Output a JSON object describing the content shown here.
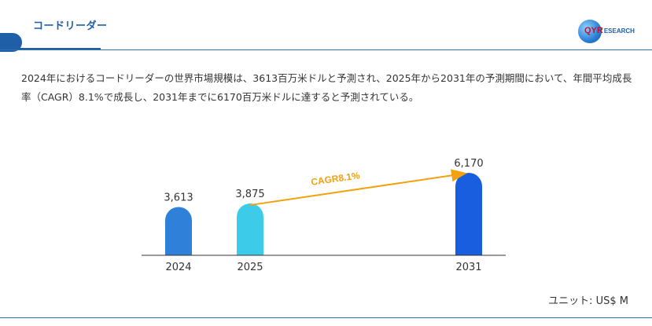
{
  "header": {
    "title": "コードリーダー",
    "logo_text": "QYR",
    "logo_sub": "ESEARCH"
  },
  "summary_text": "2024年におけるコードリーダーの世界市場規模は、3613百万米ドルと予測され、2025年から2031年の予測期間において、年間平均成長率（CAGR）8.1%で成長し、2031年までに6170百万米ドルに達すると予測されている。",
  "chart_data": {
    "type": "bar",
    "categories": [
      "2024",
      "2025",
      "2031"
    ],
    "values": [
      3613,
      3875,
      6170
    ],
    "value_labels": [
      "3,613",
      "3,875",
      "6,170"
    ],
    "colors": [
      "#2f80d8",
      "#3ccbe8",
      "#1a5ee0"
    ],
    "annotation": "CAGR8.1%",
    "annotation_color": "#f2a10f",
    "title": "",
    "xlabel": "",
    "ylabel": ""
  },
  "unit_label": "ユニット: US$ M"
}
